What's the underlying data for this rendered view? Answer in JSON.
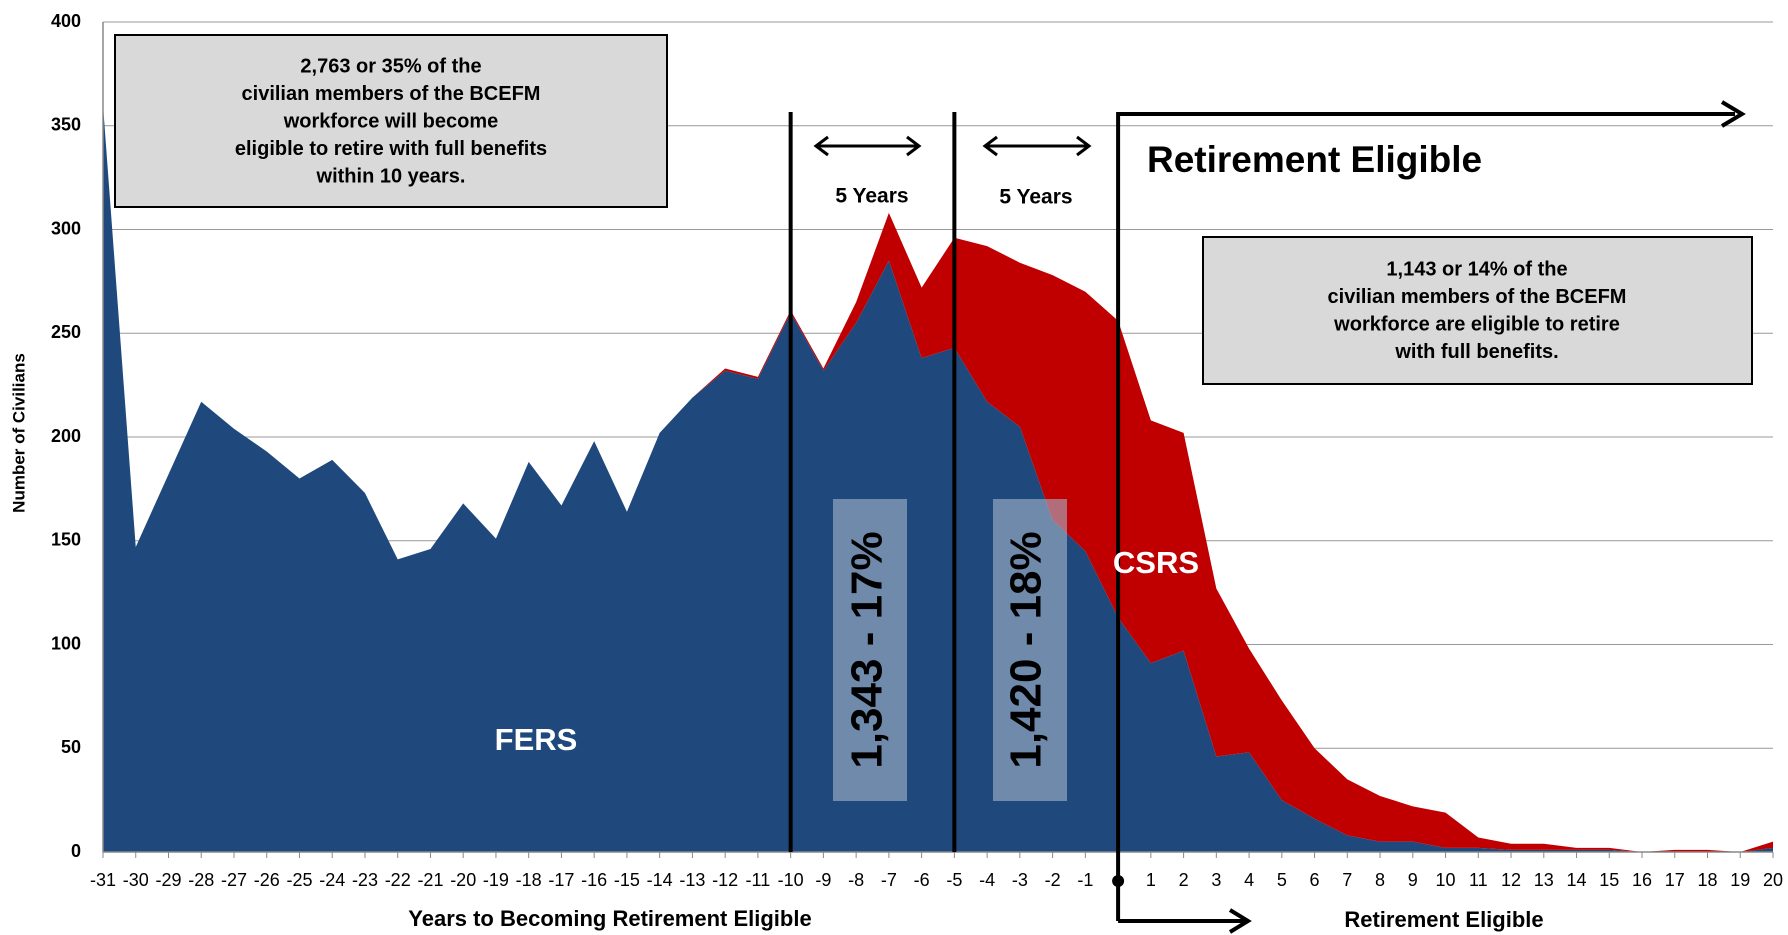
{
  "chart_data": {
    "type": "stacked_area",
    "y_label": "Number of Civilians",
    "x_label": "Years to Becoming Retirement Eligible",
    "x_label_right": "Retirement Eligible",
    "categories": [
      -31,
      -30,
      -29,
      -28,
      -27,
      -26,
      -25,
      -24,
      -23,
      -22,
      -21,
      -20,
      -19,
      -18,
      -17,
      -16,
      -15,
      -14,
      -13,
      -12,
      -11,
      -10,
      -9,
      -8,
      -7,
      -6,
      -5,
      -4,
      -3,
      -2,
      -1,
      null,
      1,
      2,
      3,
      4,
      5,
      6,
      7,
      8,
      9,
      10,
      11,
      12,
      13,
      14,
      15,
      16,
      17,
      18,
      19,
      20
    ],
    "series": [
      {
        "name": "FERS",
        "color": "#1f497d",
        "values": [
          360,
          147,
          182,
          217,
          204,
          193,
          180,
          189,
          173,
          141,
          146,
          168,
          151,
          188,
          167,
          198,
          164,
          202,
          219,
          232,
          228,
          260,
          232,
          255,
          285,
          238,
          243,
          217,
          205,
          160,
          145,
          113,
          91,
          97,
          46,
          48,
          25,
          16,
          8,
          5,
          5,
          2,
          2,
          1,
          1,
          1,
          1,
          0,
          0,
          0,
          0,
          2
        ]
      },
      {
        "name": "CSRS",
        "color": "#c00000",
        "values": [
          0,
          0,
          0,
          0,
          0,
          0,
          0,
          0,
          0,
          0,
          0,
          0,
          0,
          0,
          0,
          0,
          0,
          0,
          0,
          1,
          1,
          1,
          1,
          10,
          23,
          34,
          53,
          75,
          79,
          118,
          125,
          143,
          117,
          105,
          81,
          50,
          48,
          34,
          27,
          22,
          17,
          17,
          5,
          3,
          3,
          1,
          1,
          0,
          1,
          1,
          0,
          3
        ]
      }
    ],
    "ylim": [
      0,
      400
    ],
    "yticks": [
      0,
      50,
      100,
      150,
      200,
      250,
      300,
      350,
      400
    ],
    "grid": true,
    "annotations": {
      "left_box": [
        "2,763 or 35% of the",
        "civilian members of the BCEFM",
        "workforce will become",
        "eligible to retire with full benefits",
        "within 10 years."
      ],
      "right_box": [
        "1,143 or 14% of the",
        "civilian members of the BCEFM",
        "workforce are eligible to retire",
        "with full benefits."
      ],
      "span_1": "5 Years",
      "span_2": "5 Years",
      "eligible": "Retirement Eligible",
      "band_1": "1,343 - 17%",
      "band_2": "1,420 - 18%"
    }
  }
}
